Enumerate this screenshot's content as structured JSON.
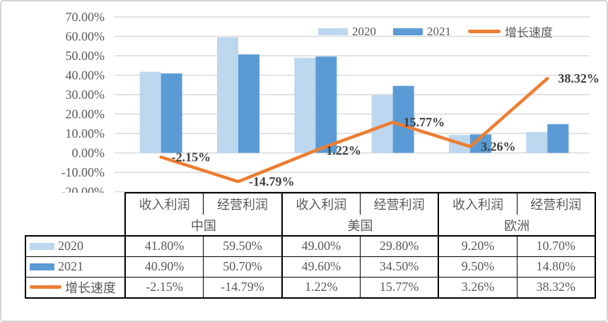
{
  "panel": {
    "background": "#ffffff",
    "border_color": "#d4d4d4"
  },
  "chart_data": {
    "type": "bar",
    "subtype": "clustered-bar-with-line-overlay",
    "title": "",
    "xlabel": "",
    "ylabel": "",
    "categories": [
      "中国 收入利润",
      "中国 经营利润",
      "美国 收入利润",
      "美国 经营利润",
      "欧洲 收入利润",
      "欧洲 经营利润"
    ],
    "series": [
      {
        "name": "2020",
        "chart": "bar",
        "color": "#BDD7EE",
        "values": [
          41.8,
          59.5,
          49.0,
          29.8,
          9.2,
          10.7
        ]
      },
      {
        "name": "2021",
        "chart": "bar",
        "color": "#5B9BD5",
        "values": [
          40.9,
          50.7,
          49.6,
          34.5,
          9.5,
          14.8
        ]
      },
      {
        "name": "增长速度",
        "chart": "line",
        "color": "#ED7D31",
        "values": [
          -2.15,
          -14.79,
          1.22,
          15.77,
          3.26,
          38.32
        ],
        "point_labels": [
          "-2.15%",
          "-14.79%",
          "1.22%",
          "15.77%",
          "3.26%",
          "38.32%"
        ]
      }
    ],
    "ylim": [
      -20,
      70
    ],
    "ytick_step": 10,
    "ytick_labels": [
      "70.00%",
      "60.00%",
      "50.00%",
      "40.00%",
      "30.00%",
      "20.00%",
      "10.00%",
      "0.00%",
      "-10.00%",
      "-20.00%"
    ],
    "grid": true,
    "gridline_color": "#D9D9D9",
    "axis_text_color": "#595959",
    "point_label_color": "#3f3f3f",
    "legend_position": "top-right"
  },
  "legend": {
    "items": [
      {
        "label": "2020",
        "swatch": "bar",
        "color": "#BDD7EE"
      },
      {
        "label": "2021",
        "swatch": "bar",
        "color": "#5B9BD5"
      },
      {
        "label": "增长速度",
        "swatch": "line",
        "color": "#ED7D31"
      }
    ]
  },
  "table": {
    "metric_headers": [
      "收入利润",
      "经营利润",
      "收入利润",
      "经营利润",
      "收入利润",
      "经营利润"
    ],
    "region_headers": [
      {
        "label": "中国",
        "span": 2
      },
      {
        "label": "美国",
        "span": 2
      },
      {
        "label": "欧洲",
        "span": 2
      }
    ],
    "rows": [
      {
        "label": "2020",
        "swatch": "bar",
        "color": "#BDD7EE",
        "values": [
          "41.80%",
          "59.50%",
          "49.00%",
          "29.80%",
          "9.20%",
          "10.70%"
        ]
      },
      {
        "label": "2021",
        "swatch": "bar",
        "color": "#5B9BD5",
        "values": [
          "40.90%",
          "50.70%",
          "49.60%",
          "34.50%",
          "9.50%",
          "14.80%"
        ]
      },
      {
        "label": "增长速度",
        "swatch": "line",
        "color": "#ED7D31",
        "values": [
          "-2.15%",
          "-14.79%",
          "1.22%",
          "15.77%",
          "3.26%",
          "38.32%"
        ]
      }
    ],
    "border_color": "#000000",
    "text_color": "#595959"
  }
}
